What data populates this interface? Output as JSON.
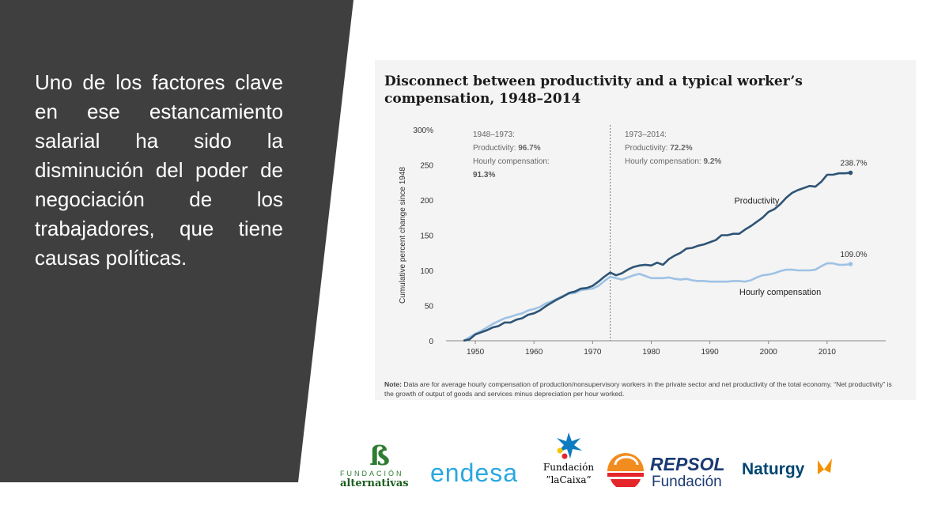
{
  "slide": {
    "text_lines": [
      "Uno de los factores clave",
      "en ese estancamiento",
      "salarial ha sido la",
      "disminución del poder de",
      "negociación de los",
      "trabajadores, que tiene",
      "causas políticas."
    ]
  },
  "chart_data": {
    "type": "line",
    "title_lines": [
      "Disconnect between productivity and a typical worker’s",
      "compensation, 1948–2014"
    ],
    "ylabel": "Cumulative percent change since 1948",
    "xlim": [
      1945,
      2020
    ],
    "ylim": [
      0,
      300
    ],
    "yticks": [
      "0",
      "50",
      "100",
      "150",
      "200",
      "250",
      "300%"
    ],
    "ytick_values": [
      0,
      50,
      100,
      150,
      200,
      250,
      300
    ],
    "xticks": [
      "1950",
      "1960",
      "1970",
      "1980",
      "1990",
      "2000",
      "2010"
    ],
    "xtick_values": [
      1950,
      1960,
      1970,
      1980,
      1990,
      2000,
      2010
    ],
    "divider_year": 1973,
    "annotation_left": {
      "period": "1948–1973:",
      "productivity_label": "Productivity: ",
      "productivity_value": "96.7%",
      "compensation_label": "Hourly compensation:",
      "compensation_value": "91.3%"
    },
    "annotation_right": {
      "period": "1973–2014:",
      "productivity_label": "Productivity: ",
      "productivity_value": "72.2%",
      "compensation_label": "Hourly compensation: ",
      "compensation_value": "9.2%"
    },
    "series": [
      {
        "name": "Productivity",
        "color": "#2e5475",
        "end_label": "238.7%",
        "x": [
          1948,
          1949,
          1950,
          1951,
          1952,
          1953,
          1954,
          1955,
          1956,
          1957,
          1958,
          1959,
          1960,
          1961,
          1962,
          1963,
          1964,
          1965,
          1966,
          1967,
          1968,
          1969,
          1970,
          1971,
          1972,
          1973,
          1974,
          1975,
          1976,
          1977,
          1978,
          1979,
          1980,
          1981,
          1982,
          1983,
          1984,
          1985,
          1986,
          1987,
          1988,
          1989,
          1990,
          1991,
          1992,
          1993,
          1994,
          1995,
          1996,
          1997,
          1998,
          1999,
          2000,
          2001,
          2002,
          2003,
          2004,
          2005,
          2006,
          2007,
          2008,
          2009,
          2010,
          2011,
          2012,
          2013,
          2014
        ],
        "values": [
          0,
          2,
          9,
          12,
          15,
          19,
          21,
          26,
          26,
          30,
          32,
          37,
          39,
          43,
          49,
          54,
          59,
          63,
          68,
          70,
          74,
          75,
          78,
          84,
          91,
          97,
          93,
          96,
          101,
          105,
          107,
          108,
          107,
          111,
          108,
          116,
          121,
          125,
          131,
          132,
          135,
          137,
          140,
          143,
          150,
          150,
          152,
          152,
          158,
          163,
          169,
          175,
          183,
          187,
          194,
          203,
          210,
          214,
          217,
          220,
          219,
          226,
          236,
          236,
          238,
          238,
          238.7
        ]
      },
      {
        "name": "Hourly compensation",
        "color": "#9ec2e4",
        "end_label": "109.0%",
        "x": [
          1948,
          1949,
          1950,
          1951,
          1952,
          1953,
          1954,
          1955,
          1956,
          1957,
          1958,
          1959,
          1960,
          1961,
          1962,
          1963,
          1964,
          1965,
          1966,
          1967,
          1968,
          1969,
          1970,
          1971,
          1972,
          1973,
          1974,
          1975,
          1976,
          1977,
          1978,
          1979,
          1980,
          1981,
          1982,
          1983,
          1984,
          1985,
          1986,
          1987,
          1988,
          1989,
          1990,
          1991,
          1992,
          1993,
          1994,
          1995,
          1996,
          1997,
          1998,
          1999,
          2000,
          2001,
          2002,
          2003,
          2004,
          2005,
          2006,
          2007,
          2008,
          2009,
          2010,
          2011,
          2012,
          2013,
          2014
        ],
        "values": [
          0,
          5,
          10,
          14,
          19,
          24,
          28,
          32,
          34,
          37,
          39,
          43,
          45,
          48,
          53,
          56,
          60,
          64,
          67,
          68,
          72,
          73,
          74,
          78,
          85,
          91,
          89,
          87,
          90,
          93,
          95,
          92,
          89,
          89,
          89,
          90,
          88,
          87,
          88,
          86,
          85,
          85,
          84,
          84,
          84,
          84,
          85,
          85,
          84,
          86,
          90,
          93,
          94,
          96,
          99,
          101,
          101,
          100,
          100,
          100,
          101,
          106,
          110,
          110,
          108,
          108,
          109
        ]
      }
    ],
    "note_label": "Note:",
    "note_text": " Data are for average hourly compensation of production/nonsupervisory workers in the private sector and net productivity of the total economy. “Net productivity” is the growth of output of goods and services minus depreciation per hour worked."
  },
  "logos": {
    "alternativas_line1": "FUNDACIÓN",
    "alternativas_line2": "alternativas",
    "endesa": "endesa",
    "lacaixa_line1": "Fundación",
    "lacaixa_line2": "”laCaixa”",
    "repsol_line1": "REPSOL",
    "repsol_line2": "Fundación",
    "naturgy": "Naturgy"
  },
  "colors": {
    "panel": "#3f3f3f",
    "productivity": "#2e5475",
    "compensation": "#9ec2e4",
    "endesa": "#2aa8e0",
    "lacaixa_blue": "#0f7cc1",
    "repsol_orange": "#f28c1e",
    "repsol_red": "#e4262b",
    "repsol_blue": "#1b3a73",
    "naturgy_blue": "#004571",
    "naturgy_orange": "#f39200",
    "alternativas_green": "#2e7d32"
  }
}
